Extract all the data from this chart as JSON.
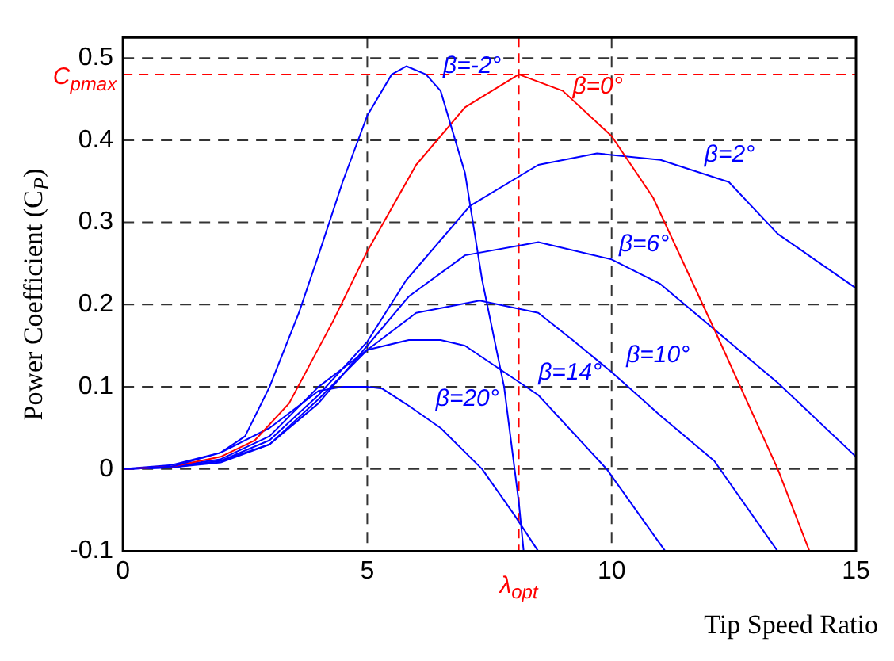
{
  "chart_data": {
    "type": "line",
    "xlabel": "Tip Speed Ratio",
    "ylabel": "Power Coefficient (C$_{P}$)",
    "xlim": [
      0,
      15
    ],
    "xticks": [
      0,
      5,
      10,
      15
    ],
    "ylim": [
      -0.1,
      0.525
    ],
    "yticks": [
      -0.1,
      0,
      0.1,
      0.2,
      0.3,
      0.4,
      0.5
    ],
    "grid": true,
    "legend": false,
    "marker": "none",
    "line_style": "solid",
    "series": [
      {
        "name": "β=-2°",
        "color": "#0000ff",
        "x": [
          0,
          1,
          2,
          2.5,
          3,
          3.6,
          4,
          4.5,
          5,
          5.5,
          5.8,
          6.2,
          6.5,
          7,
          7.35,
          7.8,
          8.1,
          8.2
        ],
        "values": [
          0,
          0.003,
          0.02,
          0.04,
          0.1,
          0.19,
          0.26,
          0.35,
          0.43,
          0.48,
          0.49,
          0.48,
          0.46,
          0.36,
          0.23,
          0.1,
          -0.04,
          -0.1
        ]
      },
      {
        "name": "β=0°",
        "color": "#ff0000",
        "x": [
          0,
          1,
          2,
          2.7,
          3.4,
          4.3,
          5,
          6,
          7,
          8.1,
          9,
          10,
          10.85,
          12.1,
          13.4,
          14.05
        ],
        "values": [
          0,
          0.003,
          0.015,
          0.035,
          0.08,
          0.18,
          0.265,
          0.37,
          0.44,
          0.48,
          0.46,
          0.405,
          0.33,
          0.17,
          0,
          -0.1
        ]
      },
      {
        "name": "β=2°",
        "color": "#0000ff",
        "x": [
          0,
          1,
          2,
          3,
          4,
          5,
          5.8,
          7.1,
          8.5,
          9.7,
          11,
          12.4,
          13.4,
          15
        ],
        "values": [
          0,
          0.002,
          0.01,
          0.035,
          0.09,
          0.155,
          0.23,
          0.32,
          0.37,
          0.384,
          0.376,
          0.349,
          0.286,
          0.22
        ]
      },
      {
        "name": "β=6°",
        "color": "#0000ff",
        "x": [
          0,
          1,
          2,
          3,
          4,
          5,
          5.85,
          7,
          8.5,
          10,
          11,
          12.2,
          13.4,
          14.2,
          15
        ],
        "values": [
          0,
          0.002,
          0.01,
          0.03,
          0.08,
          0.15,
          0.21,
          0.26,
          0.276,
          0.255,
          0.225,
          0.165,
          0.105,
          0.06,
          0.015
        ]
      },
      {
        "name": "β=10°",
        "color": "#0000ff",
        "x": [
          0,
          1,
          2,
          3,
          4,
          5,
          6,
          7.3,
          8.5,
          9.2,
          10,
          11,
          12.1,
          13.4
        ],
        "values": [
          0,
          0.002,
          0.008,
          0.03,
          0.085,
          0.145,
          0.19,
          0.205,
          0.19,
          0.157,
          0.118,
          0.065,
          0.01,
          -0.1
        ]
      },
      {
        "name": "β=14°",
        "color": "#0000ff",
        "x": [
          0,
          1,
          2,
          3,
          4,
          5,
          5.85,
          6.5,
          7,
          8.5,
          9.9,
          11.1
        ],
        "values": [
          0,
          0.003,
          0.012,
          0.04,
          0.1,
          0.145,
          0.157,
          0.157,
          0.15,
          0.09,
          0,
          -0.1
        ]
      },
      {
        "name": "β=20°",
        "color": "#0000ff",
        "x": [
          0,
          1,
          2,
          3,
          4,
          4.5,
          5,
          5.3,
          5.85,
          6.5,
          7.35,
          8,
          8.5
        ],
        "values": [
          0,
          0.005,
          0.02,
          0.05,
          0.095,
          0.1,
          0.1,
          0.098,
          0.077,
          0.05,
          0,
          -0.055,
          -0.1
        ]
      }
    ],
    "ref_lines": [
      {
        "axis": "y",
        "value": 0.48,
        "label": "C$_{pmax}$",
        "color": "#ff0000",
        "line_style": "dashed"
      },
      {
        "axis": "x",
        "value": 8.1,
        "label": "λ$_{opt}$",
        "color": "#ff0000",
        "line_style": "dashed"
      }
    ]
  }
}
